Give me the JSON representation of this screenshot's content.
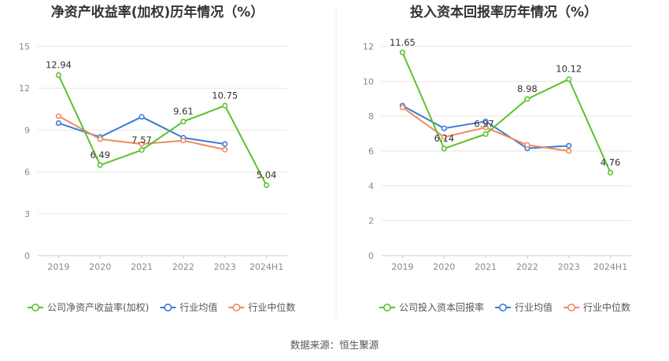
{
  "source": "数据来源：恒生聚源",
  "chart_data": [
    {
      "type": "line",
      "title": "净资产收益率(加权)历年情况（%）",
      "xlabel": "",
      "ylabel": "",
      "categories": [
        "2019",
        "2020",
        "2021",
        "2022",
        "2023",
        "2024H1"
      ],
      "ylim": [
        0,
        15
      ],
      "yticks": [
        0,
        3,
        6,
        9,
        12,
        15
      ],
      "grid": true,
      "legend_position": "bottom",
      "series": [
        {
          "name": "公司净资产收益率(加权)",
          "color": "#5cc130",
          "values": [
            12.94,
            6.49,
            7.57,
            9.61,
            10.75,
            5.04
          ],
          "labels": [
            "12.94",
            "6.49",
            "7.57",
            "9.61",
            "10.75",
            "5.04"
          ]
        },
        {
          "name": "行业均值",
          "color": "#3a7ad5",
          "values": [
            9.5,
            8.5,
            9.95,
            8.45,
            8.0,
            null
          ]
        },
        {
          "name": "行业中位数",
          "color": "#f08a5d",
          "values": [
            10.0,
            8.35,
            8.0,
            8.25,
            7.6,
            null
          ]
        }
      ]
    },
    {
      "type": "line",
      "title": "投入资本回报率历年情况（%）",
      "xlabel": "",
      "ylabel": "",
      "categories": [
        "2019",
        "2020",
        "2021",
        "2022",
        "2023",
        "2024H1"
      ],
      "ylim": [
        0,
        12
      ],
      "yticks": [
        0,
        2,
        4,
        6,
        8,
        10,
        12
      ],
      "grid": true,
      "legend_position": "bottom",
      "series": [
        {
          "name": "公司投入资本回报率",
          "color": "#5cc130",
          "values": [
            11.65,
            6.14,
            6.97,
            8.98,
            10.12,
            4.76
          ],
          "labels": [
            "11.65",
            "6.14",
            "6.97",
            "8.98",
            "10.12",
            "4.76"
          ]
        },
        {
          "name": "行业均值",
          "color": "#3a7ad5",
          "values": [
            8.6,
            7.3,
            7.7,
            6.15,
            6.3,
            null
          ]
        },
        {
          "name": "行业中位数",
          "color": "#f08a5d",
          "values": [
            8.5,
            6.8,
            7.35,
            6.35,
            6.0,
            null
          ]
        }
      ]
    }
  ]
}
